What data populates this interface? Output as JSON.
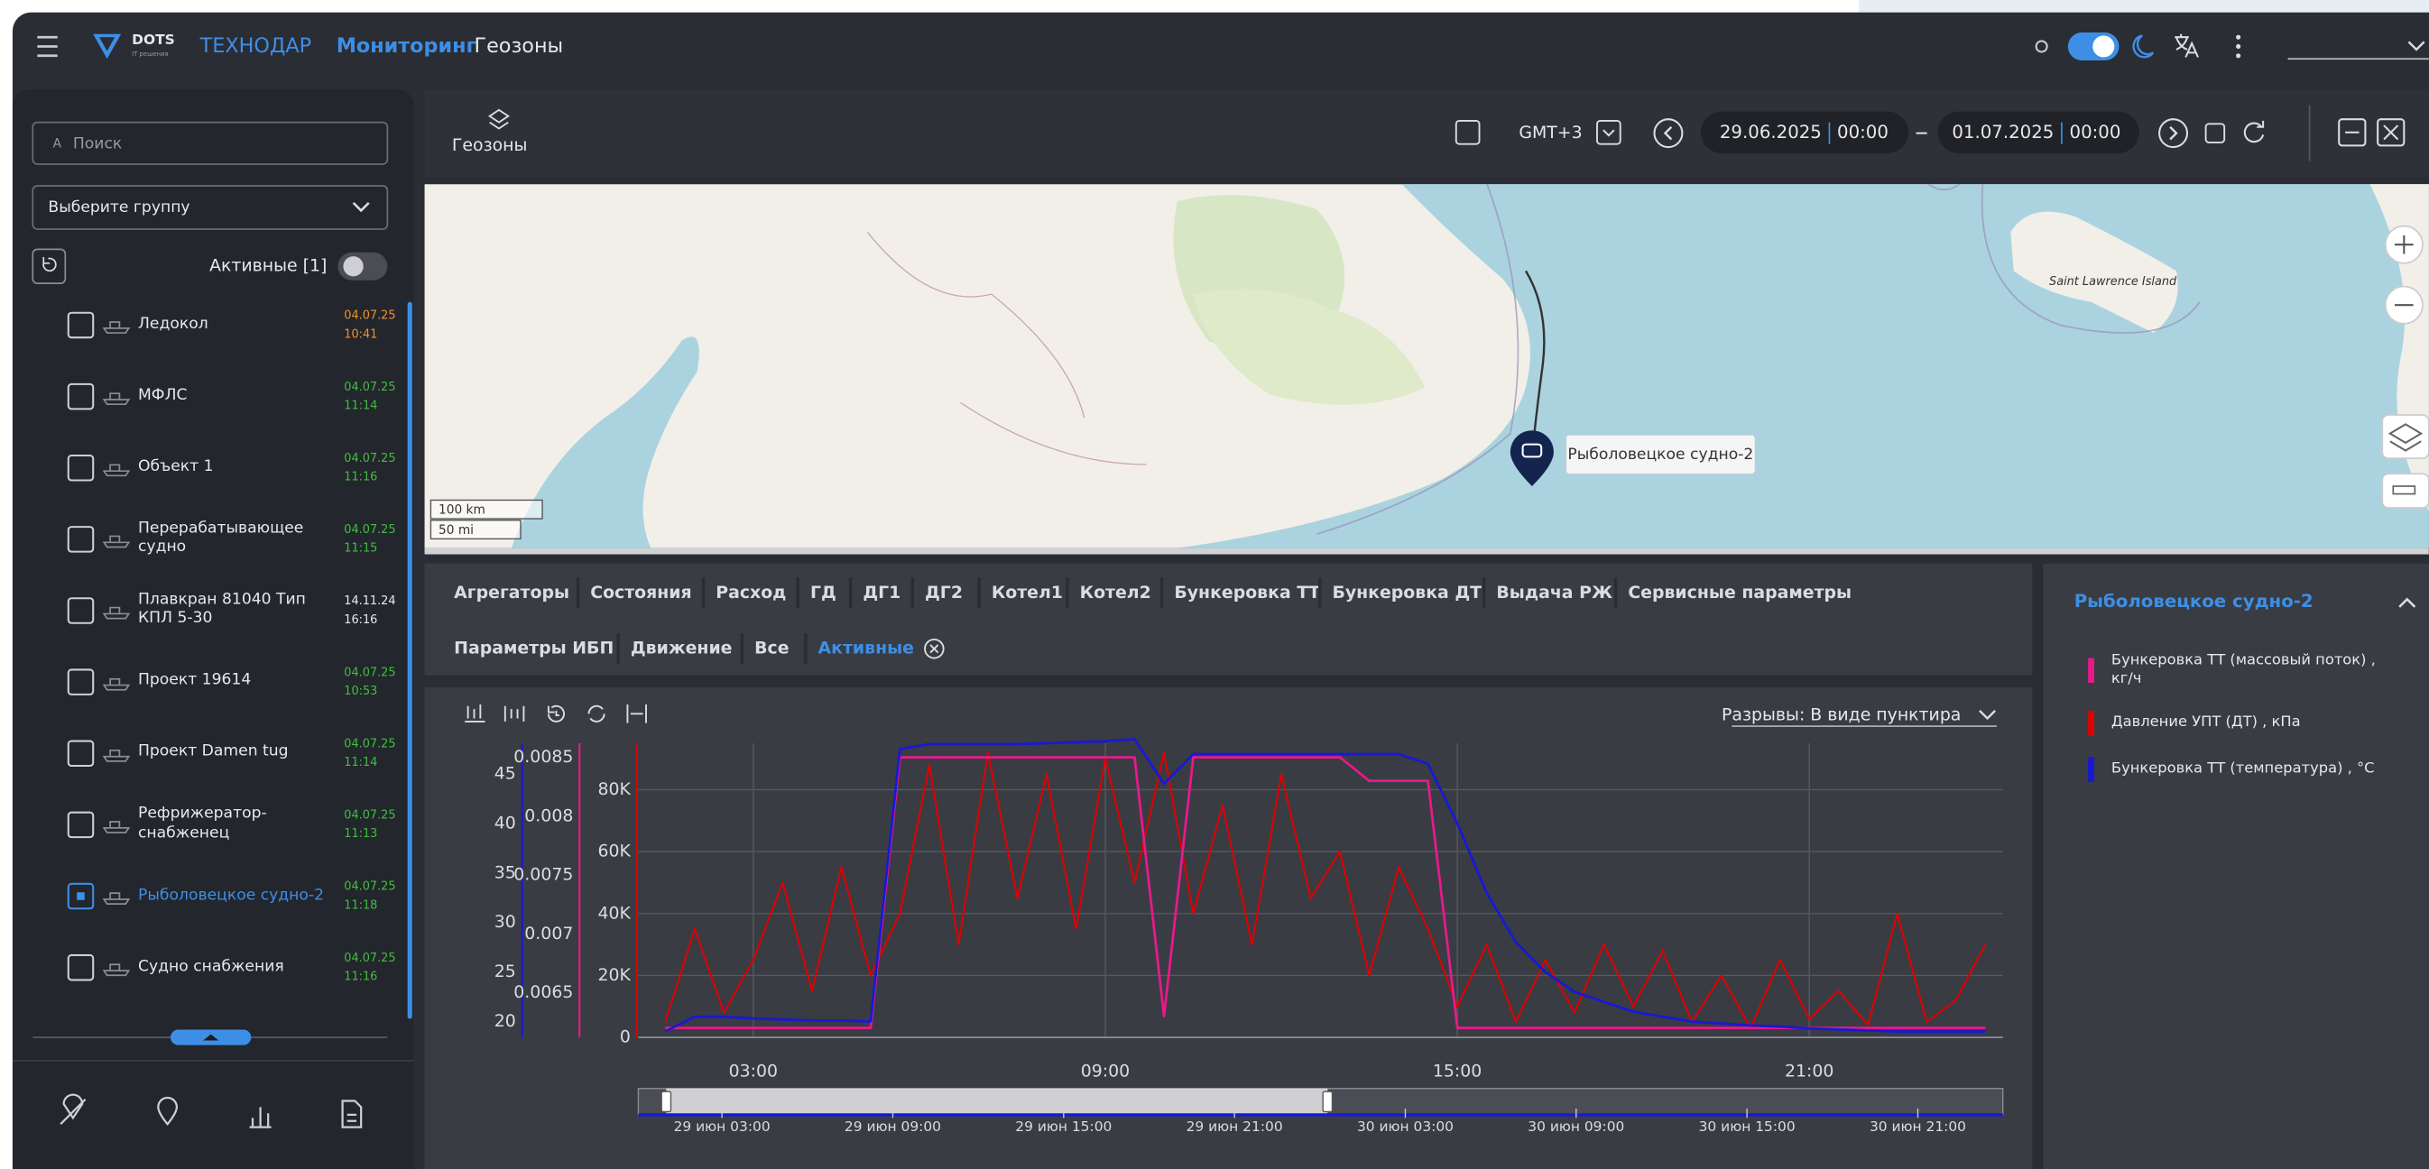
{
  "header": {
    "brand": "DOTS",
    "brand_tagline": "IT решения",
    "company": "ТЕХНОДАР",
    "nav": [
      "Мониторинг",
      "Геозоны"
    ]
  },
  "sidebar": {
    "search_placeholder": "Поиск",
    "group_select": "Выберите группу",
    "active_filter": "Активные [1]",
    "items": [
      {
        "name": "Ледокол",
        "date": "04.07.25",
        "time": "10:41",
        "date_color": "#f0902a",
        "selected": false
      },
      {
        "name": "МФЛС",
        "date": "04.07.25",
        "time": "11:14",
        "date_color": "#3fbf3f",
        "selected": false
      },
      {
        "name": "Объект 1",
        "date": "04.07.25",
        "time": "11:16",
        "date_color": "#3fbf3f",
        "selected": false
      },
      {
        "name": "Перерабатывающее судно",
        "date": "04.07.25",
        "time": "11:15",
        "date_color": "#3fbf3f",
        "selected": false
      },
      {
        "name": "Плавкран 81040 Тип КПЛ 5-30",
        "date": "14.11.24",
        "time": "16:16",
        "date_color": "#e8e8ea",
        "selected": false
      },
      {
        "name": "Проект 19614",
        "date": "04.07.25",
        "time": "10:53",
        "date_color": "#3fbf3f",
        "selected": false
      },
      {
        "name": "Проект Damen tug",
        "date": "04.07.25",
        "time": "11:14",
        "date_color": "#3fbf3f",
        "selected": false
      },
      {
        "name": "Рефрижератор-снабженец",
        "date": "04.07.25",
        "time": "11:13",
        "date_color": "#3fbf3f",
        "selected": false
      },
      {
        "name": "Рыболовецкое судно-2",
        "date": "04.07.25",
        "time": "11:18",
        "date_color": "#3fbf3f",
        "selected": true
      },
      {
        "name": "Судно снабжения",
        "date": "04.07.25",
        "time": "11:16",
        "date_color": "#3fbf3f",
        "selected": false
      }
    ]
  },
  "panel": {
    "title": "Геозоны",
    "timezone": "GMT+3",
    "from": {
      "date": "29.06.2025",
      "time": "00:00"
    },
    "to": {
      "date": "01.07.2025",
      "time": "00:00"
    }
  },
  "map": {
    "island": "Saint Lawrence Island",
    "marker": "Рыболовецкое судно-2",
    "scale": [
      "100 km",
      "50 mi"
    ]
  },
  "tabs": [
    {
      "label": "Агрегаторы",
      "active": false
    },
    {
      "label": "Состояния",
      "active": false
    },
    {
      "label": "Расход",
      "active": false
    },
    {
      "label": "ГД",
      "active": false
    },
    {
      "label": "ДГ1",
      "active": false
    },
    {
      "label": "ДГ2",
      "active": false
    },
    {
      "label": "Котел1",
      "active": false
    },
    {
      "label": "Котел2",
      "active": false
    },
    {
      "label": "Бункеровка ТТ",
      "active": false
    },
    {
      "label": "Бункеровка ДТ",
      "active": false
    },
    {
      "label": "Выдача РЖ",
      "active": false
    },
    {
      "label": "Сервисные параметры",
      "active": false
    },
    {
      "label": "Параметры ИБП",
      "active": false
    },
    {
      "label": "Движение",
      "active": false
    },
    {
      "label": "Все",
      "active": false
    },
    {
      "label": "Активные",
      "active": true
    }
  ],
  "gaps_mode": "Разрывы: В виде пунктира",
  "legend_panel": {
    "title": "Рыболовецкое судно-2"
  },
  "chart_data": {
    "type": "line",
    "x": [
      1.5,
      2,
      2.5,
      3,
      3.5,
      4,
      4.5,
      5,
      5.5,
      6,
      6.5,
      7,
      7.5,
      8,
      8.5,
      9,
      9.5,
      10,
      10.5,
      11,
      11.5,
      12,
      12.5,
      13,
      13.5,
      14,
      14.5,
      15,
      15.5,
      16,
      16.5,
      17,
      17.5,
      18,
      18.5,
      19,
      19.5,
      20,
      20.5,
      21,
      21.5,
      22,
      22.5,
      23,
      23.5,
      24
    ],
    "xlim": [
      1.04,
      24.3
    ],
    "xticks": [
      {
        "value": 3,
        "label": "03:00"
      },
      {
        "value": 9,
        "label": "09:00"
      },
      {
        "value": 15,
        "label": "15:00"
      },
      {
        "value": 21,
        "label": "21:00"
      }
    ],
    "ylim": [
      0,
      95000
    ],
    "yticks": [
      0,
      {
        "value": 20000,
        "label": "20K"
      },
      {
        "value": 40000,
        "label": "40K"
      },
      {
        "value": 60000,
        "label": "60K"
      },
      {
        "value": 80000,
        "label": "80K"
      }
    ],
    "y2lim": [
      18.4,
      48.1
    ],
    "y2ticks": [
      20,
      25,
      30,
      35,
      40,
      45
    ],
    "y3lim": [
      0.00612,
      0.00862
    ],
    "y3ticks": [
      0.0065,
      0.007,
      0.0075,
      0.008,
      0.0085
    ],
    "grid": true,
    "series": [
      {
        "name": "Бункеровка ТТ (массовый поток) , кг/ч",
        "color": "#e8198b",
        "axis": "y3",
        "values": [
          0.0062,
          0.0062,
          0.0062,
          0.0062,
          0.0062,
          0.0062,
          0.0062,
          0.0062,
          0.0085,
          0.0085,
          0.0085,
          0.0085,
          0.0085,
          0.0085,
          0.0085,
          0.0085,
          0.0085,
          0.0063,
          0.0085,
          0.0085,
          0.0085,
          0.0085,
          0.0085,
          0.0085,
          0.0083,
          0.0083,
          0.0083,
          0.0062,
          0.0062,
          0.0062,
          0.0062,
          0.0062,
          0.0062,
          0.0062,
          0.0062,
          0.0062,
          0.0062,
          0.0062,
          0.0062,
          0.0062,
          0.0062,
          0.0062,
          0.0062,
          0.0062,
          0.0062,
          0.0062
        ]
      },
      {
        "name": "Давление УПТ (ДТ) , кПа",
        "color": "#e00000",
        "axis": "y",
        "values": [
          5000,
          35000,
          8000,
          25000,
          50000,
          15000,
          55000,
          20000,
          40000,
          88000,
          30000,
          92000,
          45000,
          85000,
          35000,
          90000,
          50000,
          92000,
          40000,
          75000,
          30000,
          85000,
          45000,
          60000,
          20000,
          55000,
          35000,
          10000,
          30000,
          5000,
          25000,
          8000,
          30000,
          10000,
          28000,
          5000,
          20000,
          3000,
          25000,
          6000,
          15000,
          4000,
          40000,
          5000,
          12000,
          30000
        ]
      },
      {
        "name": "Бункеровка ТТ (температура) , °С",
        "color": "#1818d8",
        "axis": "y2",
        "values": [
          19,
          20.5,
          20.5,
          20.3,
          20.2,
          20.1,
          20.1,
          20,
          47.5,
          48,
          48,
          48,
          48,
          48.1,
          48.2,
          48.3,
          48.5,
          44,
          47,
          47,
          47,
          47,
          47,
          47,
          47,
          47,
          46,
          40,
          33,
          28,
          25,
          23,
          22,
          21,
          20.5,
          20,
          19.8,
          19.6,
          19.5,
          19.3,
          19.2,
          19.1,
          19,
          19,
          19,
          19
        ]
      }
    ],
    "navigator_labels": [
      "29 июн 03:00",
      "29 июн 09:00",
      "29 июн 15:00",
      "29 июн 21:00",
      "30 июн 03:00",
      "30 июн 09:00",
      "30 июн 15:00",
      "30 июн 21:00"
    ]
  }
}
